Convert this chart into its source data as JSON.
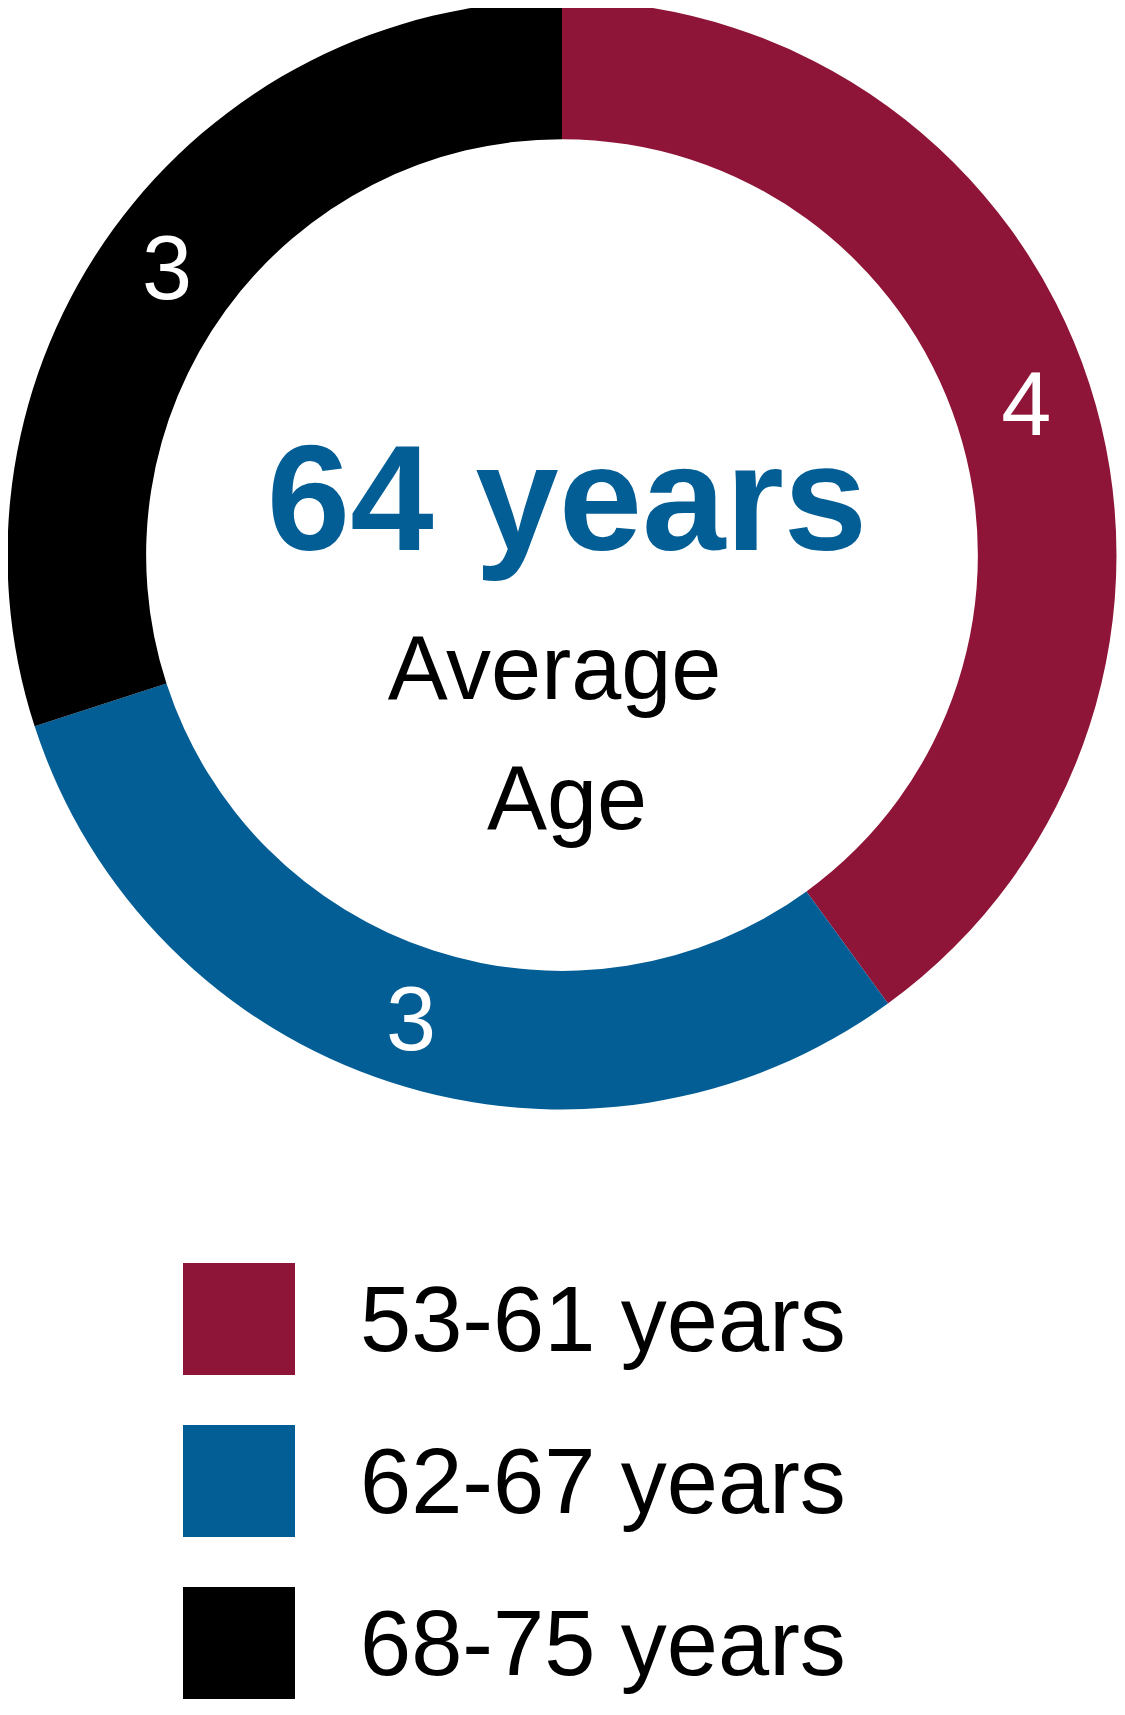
{
  "chart_data": {
    "type": "donut",
    "title": "64 years",
    "subtitle": "Average Age",
    "categories": [
      "53-61 years",
      "62-67 years",
      "68-75 years"
    ],
    "values": [
      4,
      3,
      3
    ],
    "colors": [
      "#8e1538",
      "#035e96",
      "#000000"
    ],
    "data_labels": true,
    "legend": "bottom"
  }
}
